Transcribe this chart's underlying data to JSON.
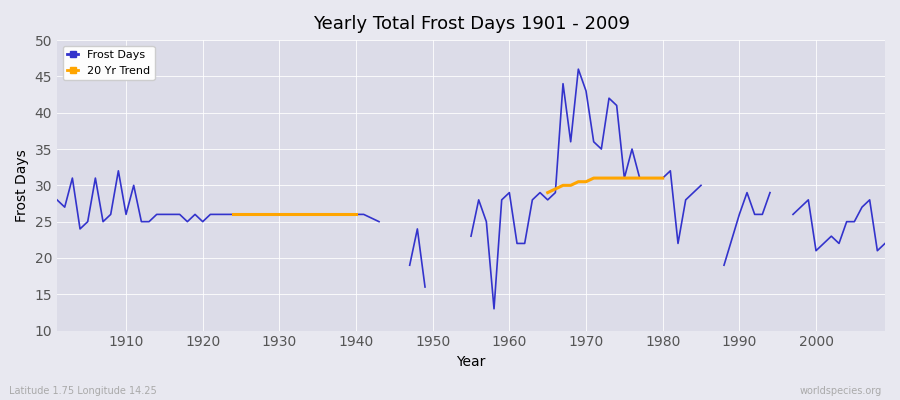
{
  "title": "Yearly Total Frost Days 1901 - 2009",
  "xlabel": "Year",
  "ylabel": "Frost Days",
  "subtitle": "Latitude 1.75 Longitude 14.25",
  "watermark": "worldspecies.org",
  "ylim": [
    10,
    50
  ],
  "xlim": [
    1901,
    2009
  ],
  "background_color": "#e8e8f0",
  "plot_bg_color": "#dcdce8",
  "line_color": "#3333cc",
  "trend_color": "#ffa500",
  "frost_years": [
    1901,
    1902,
    1903,
    1904,
    1905,
    1906,
    1907,
    1908,
    1909,
    1910,
    1911,
    1912,
    1913,
    1914,
    1915,
    1916,
    1917,
    1918,
    1919,
    1920,
    1921,
    1922,
    1923,
    1924,
    1925,
    1926,
    1927,
    1928,
    1929,
    1930,
    1931,
    1932,
    1933,
    1934,
    1935,
    1936,
    1937,
    1938,
    1939,
    1940,
    1941,
    1943,
    1947,
    1948,
    1949,
    1955,
    1956,
    1957,
    1958,
    1959,
    1960,
    1961,
    1962,
    1963,
    1964,
    1965,
    1966,
    1967,
    1968,
    1969,
    1970,
    1971,
    1972,
    1973,
    1974,
    1975,
    1976,
    1977,
    1978,
    1979,
    1980,
    1981,
    1982,
    1983,
    1985,
    1988,
    1990,
    1991,
    1992,
    1993,
    1994,
    1997,
    1998,
    1999,
    2000,
    2001,
    2002,
    2003,
    2004,
    2005,
    2006,
    2007,
    2008,
    2009
  ],
  "frost_values": [
    28,
    27,
    31,
    24,
    25,
    31,
    25,
    26,
    32,
    26,
    30,
    25,
    25,
    26,
    26,
    26,
    26,
    25,
    26,
    25,
    26,
    26,
    26,
    26,
    26,
    26,
    26,
    26,
    26,
    26,
    26,
    26,
    26,
    26,
    26,
    26,
    26,
    26,
    26,
    26,
    26,
    25,
    19,
    24,
    16,
    23,
    28,
    25,
    13,
    28,
    29,
    22,
    22,
    28,
    29,
    28,
    29,
    44,
    36,
    46,
    43,
    36,
    35,
    42,
    41,
    31,
    35,
    31,
    31,
    31,
    31,
    32,
    22,
    28,
    30,
    19,
    26,
    29,
    26,
    26,
    29,
    26,
    27,
    28,
    21,
    22,
    23,
    22,
    25,
    25,
    27,
    28,
    21,
    22
  ],
  "trend_years": [
    1924,
    1925,
    1926,
    1927,
    1928,
    1929,
    1930,
    1931,
    1932,
    1933,
    1934,
    1935,
    1936,
    1937,
    1938,
    1939,
    1940,
    1965,
    1966,
    1967,
    1968,
    1969,
    1970,
    1971,
    1972,
    1973,
    1974,
    1975,
    1976,
    1977,
    1978,
    1979,
    1980
  ],
  "trend_values": [
    26,
    26,
    26,
    26,
    26,
    26,
    26,
    26,
    26,
    26,
    26,
    26,
    26,
    26,
    26,
    26,
    26,
    29,
    29.5,
    30,
    30,
    30.5,
    30.5,
    31,
    31,
    31,
    31,
    31,
    31,
    31,
    31,
    31,
    31
  ]
}
